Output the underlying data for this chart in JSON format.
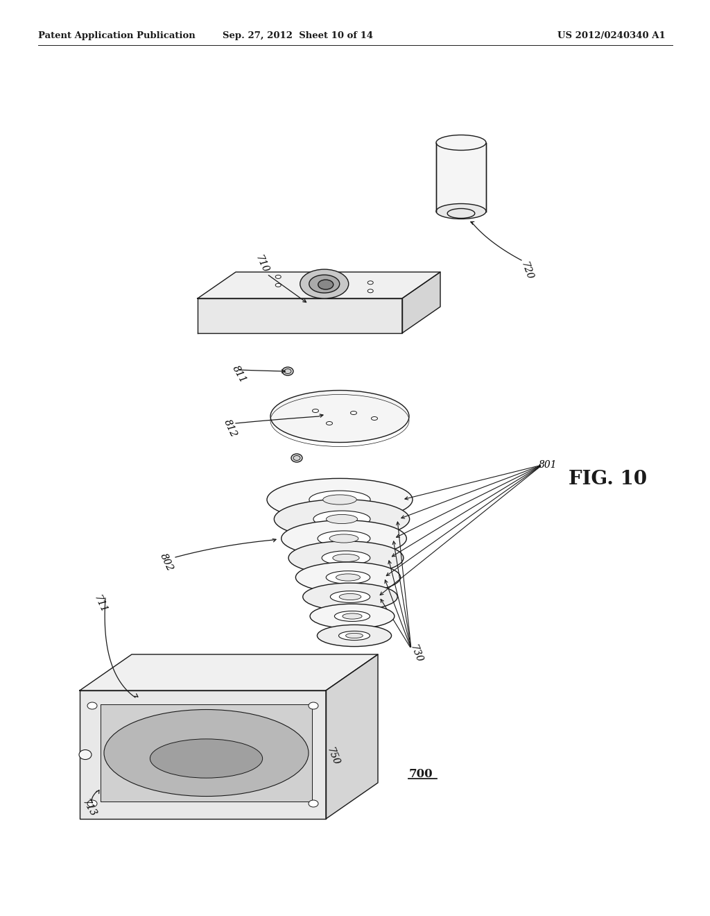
{
  "bg_color": "#ffffff",
  "header_left": "Patent Application Publication",
  "header_center": "Sep. 27, 2012  Sheet 10 of 14",
  "header_right": "US 2012/0240340 A1",
  "fig_label": "FIG. 10",
  "line_color": "#1a1a1a",
  "text_color": "#000000",
  "fill_light": "#f5f5f5",
  "fill_mid": "#e8e8e8",
  "fill_dark": "#d5d5d5",
  "fill_shadow": "#c8c8c8"
}
